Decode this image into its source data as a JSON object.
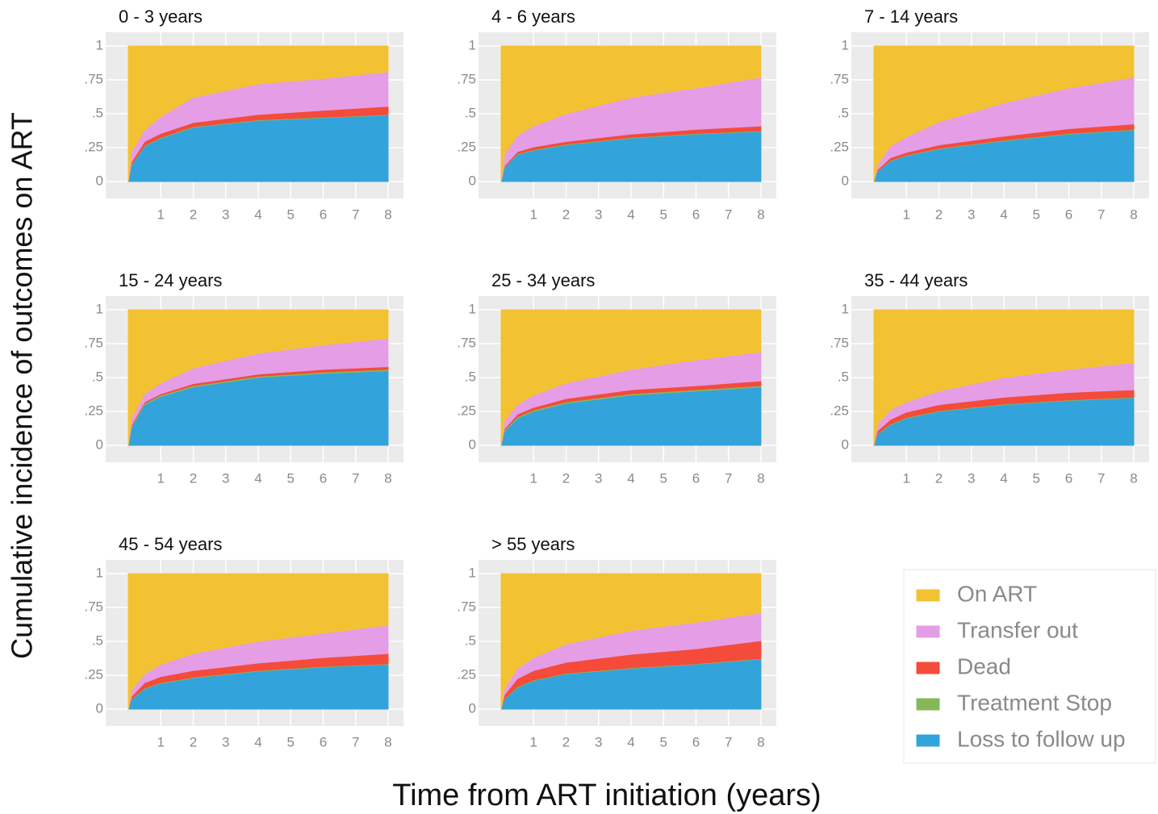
{
  "ylabel": "Cumulative incidence of outcomes on ART",
  "xlabel": "Time from ART initiation (years)",
  "legend": [
    {
      "name": "On ART",
      "color": "#f3c233"
    },
    {
      "name": "Transfer out",
      "color": "#e59de6"
    },
    {
      "name": "Dead",
      "color": "#f44b3b"
    },
    {
      "name": "Treatment Stop",
      "color": "#86b85a"
    },
    {
      "name": "Loss to follow up",
      "color": "#33a3dc"
    }
  ],
  "chart_data": [
    {
      "type": "area",
      "title": "0 - 3 years",
      "x": [
        0,
        0.1,
        0.5,
        1,
        2,
        4,
        6,
        8
      ],
      "xlim": [
        0,
        8
      ],
      "xticks": [
        1,
        2,
        3,
        4,
        5,
        6,
        7,
        8
      ],
      "ylim": [
        0,
        1
      ],
      "yticks": [
        0,
        {
          "value": 0.25,
          "label": ".25"
        },
        {
          "value": 0.5,
          "label": ".5"
        },
        {
          "value": 0.75,
          "label": ".75"
        },
        1
      ],
      "series": [
        {
          "values": [
            1,
            0.78,
            0.62,
            0.52,
            0.38,
            0.28,
            0.24,
            0.19
          ]
        },
        {
          "values": [
            0,
            0.075,
            0.085,
            0.125,
            0.185,
            0.225,
            0.235,
            0.255
          ]
        },
        {
          "values": [
            0,
            0.02,
            0.03,
            0.03,
            0.03,
            0.04,
            0.05,
            0.06
          ]
        },
        {
          "values": [
            0,
            0.005,
            0.005,
            0.005,
            0.005,
            0.005,
            0.005,
            0.005
          ]
        },
        {
          "values": [
            0,
            0.12,
            0.26,
            0.32,
            0.4,
            0.45,
            0.47,
            0.49
          ]
        }
      ]
    },
    {
      "type": "area",
      "title": "4 - 6 years",
      "x": [
        0,
        0.1,
        0.5,
        1,
        2,
        4,
        6,
        8
      ],
      "xlim": [
        0,
        8
      ],
      "xticks": [
        1,
        2,
        3,
        4,
        5,
        6,
        7,
        8
      ],
      "ylim": [
        0,
        1
      ],
      "yticks": [
        0,
        {
          "value": 0.25,
          "label": ".25"
        },
        {
          "value": 0.5,
          "label": ".5"
        },
        {
          "value": 0.75,
          "label": ".75"
        },
        1
      ],
      "series": [
        {
          "values": [
            1,
            0.8,
            0.66,
            0.59,
            0.5,
            0.38,
            0.31,
            0.23
          ]
        },
        {
          "values": [
            0,
            0.085,
            0.12,
            0.155,
            0.205,
            0.27,
            0.305,
            0.36
          ]
        },
        {
          "values": [
            0,
            0.01,
            0.015,
            0.02,
            0.02,
            0.025,
            0.03,
            0.035
          ]
        },
        {
          "values": [
            0,
            0.005,
            0.005,
            0.005,
            0.005,
            0.005,
            0.005,
            0.005
          ]
        },
        {
          "values": [
            0,
            0.1,
            0.2,
            0.23,
            0.27,
            0.32,
            0.35,
            0.37
          ]
        }
      ]
    },
    {
      "type": "area",
      "title": "7 - 14 years",
      "x": [
        0,
        0.1,
        0.5,
        1,
        2,
        4,
        6,
        8
      ],
      "xlim": [
        0,
        8
      ],
      "xticks": [
        1,
        2,
        3,
        4,
        5,
        6,
        7,
        8
      ],
      "ylim": [
        0,
        1
      ],
      "yticks": [
        0,
        {
          "value": 0.25,
          "label": ".25"
        },
        {
          "value": 0.5,
          "label": ".5"
        },
        {
          "value": 0.75,
          "label": ".75"
        },
        1
      ],
      "series": [
        {
          "values": [
            1,
            0.88,
            0.74,
            0.67,
            0.56,
            0.42,
            0.31,
            0.23
          ]
        },
        {
          "values": [
            0,
            0.035,
            0.085,
            0.115,
            0.17,
            0.245,
            0.3,
            0.345
          ]
        },
        {
          "values": [
            0,
            0.01,
            0.02,
            0.02,
            0.025,
            0.03,
            0.035,
            0.04
          ]
        },
        {
          "values": [
            0,
            0.005,
            0.005,
            0.005,
            0.005,
            0.005,
            0.005,
            0.005
          ]
        },
        {
          "values": [
            0,
            0.07,
            0.15,
            0.19,
            0.24,
            0.3,
            0.35,
            0.38
          ]
        }
      ]
    },
    {
      "type": "area",
      "title": "15 - 24 years",
      "x": [
        0,
        0.1,
        0.5,
        1,
        2,
        4,
        6,
        8
      ],
      "xlim": [
        0,
        8
      ],
      "xticks": [
        1,
        2,
        3,
        4,
        5,
        6,
        7,
        8
      ],
      "ylim": [
        0,
        1
      ],
      "yticks": [
        0,
        {
          "value": 0.25,
          "label": ".25"
        },
        {
          "value": 0.5,
          "label": ".5"
        },
        {
          "value": 0.75,
          "label": ".75"
        },
        1
      ],
      "series": [
        {
          "values": [
            1,
            0.8,
            0.62,
            0.54,
            0.43,
            0.32,
            0.26,
            0.21
          ]
        },
        {
          "values": [
            0,
            0.05,
            0.06,
            0.08,
            0.115,
            0.155,
            0.18,
            0.21
          ]
        },
        {
          "values": [
            0,
            0.01,
            0.01,
            0.01,
            0.015,
            0.015,
            0.02,
            0.02
          ]
        },
        {
          "values": [
            0,
            0.01,
            0.01,
            0.01,
            0.01,
            0.01,
            0.01,
            0.01
          ]
        },
        {
          "values": [
            0,
            0.13,
            0.3,
            0.36,
            0.43,
            0.5,
            0.53,
            0.55
          ]
        }
      ]
    },
    {
      "type": "area",
      "title": "25 - 34 years",
      "x": [
        0,
        0.1,
        0.5,
        1,
        2,
        4,
        6,
        8
      ],
      "xlim": [
        0,
        8
      ],
      "xticks": [
        1,
        2,
        3,
        4,
        5,
        6,
        7,
        8
      ],
      "ylim": [
        0,
        1
      ],
      "yticks": [
        0,
        {
          "value": 0.25,
          "label": ".25"
        },
        {
          "value": 0.5,
          "label": ".5"
        },
        {
          "value": 0.75,
          "label": ".75"
        },
        1
      ],
      "series": [
        {
          "values": [
            1,
            0.82,
            0.7,
            0.63,
            0.54,
            0.44,
            0.37,
            0.31
          ]
        },
        {
          "values": [
            0,
            0.06,
            0.07,
            0.09,
            0.115,
            0.15,
            0.19,
            0.215
          ]
        },
        {
          "values": [
            0,
            0.01,
            0.02,
            0.02,
            0.025,
            0.03,
            0.03,
            0.035
          ]
        },
        {
          "values": [
            0,
            0.01,
            0.01,
            0.01,
            0.01,
            0.01,
            0.01,
            0.01
          ]
        },
        {
          "values": [
            0,
            0.1,
            0.2,
            0.25,
            0.31,
            0.37,
            0.4,
            0.43
          ]
        }
      ]
    },
    {
      "type": "area",
      "title": "35 - 44 years",
      "x": [
        0,
        0.1,
        0.5,
        1,
        2,
        4,
        6,
        8
      ],
      "xlim": [
        0,
        8
      ],
      "xticks": [
        1,
        2,
        3,
        4,
        5,
        6,
        7,
        8
      ],
      "ylim": [
        0,
        1
      ],
      "yticks": [
        0,
        {
          "value": 0.25,
          "label": ".25"
        },
        {
          "value": 0.5,
          "label": ".5"
        },
        {
          "value": 0.75,
          "label": ".75"
        },
        1
      ],
      "series": [
        {
          "values": [
            1,
            0.85,
            0.74,
            0.68,
            0.6,
            0.5,
            0.44,
            0.39
          ]
        },
        {
          "values": [
            0,
            0.045,
            0.07,
            0.075,
            0.1,
            0.145,
            0.17,
            0.2
          ]
        },
        {
          "values": [
            0,
            0.02,
            0.035,
            0.04,
            0.045,
            0.05,
            0.055,
            0.055
          ]
        },
        {
          "values": [
            0,
            0.005,
            0.005,
            0.005,
            0.005,
            0.005,
            0.005,
            0.005
          ]
        },
        {
          "values": [
            0,
            0.08,
            0.15,
            0.2,
            0.25,
            0.3,
            0.33,
            0.35
          ]
        }
      ]
    },
    {
      "type": "area",
      "title": "45 - 54 years",
      "x": [
        0,
        0.1,
        0.5,
        1,
        2,
        4,
        6,
        8
      ],
      "xlim": [
        0,
        8
      ],
      "xticks": [
        1,
        2,
        3,
        4,
        5,
        6,
        7,
        8
      ],
      "ylim": [
        0,
        1
      ],
      "yticks": [
        0,
        {
          "value": 0.25,
          "label": ".25"
        },
        {
          "value": 0.5,
          "label": ".5"
        },
        {
          "value": 0.75,
          "label": ".75"
        },
        1
      ],
      "series": [
        {
          "values": [
            1,
            0.86,
            0.74,
            0.67,
            0.59,
            0.5,
            0.44,
            0.38
          ]
        },
        {
          "values": [
            0,
            0.045,
            0.065,
            0.09,
            0.125,
            0.16,
            0.18,
            0.21
          ]
        },
        {
          "values": [
            0,
            0.02,
            0.04,
            0.045,
            0.05,
            0.055,
            0.065,
            0.075
          ]
        },
        {
          "values": [
            0,
            0.005,
            0.005,
            0.005,
            0.005,
            0.005,
            0.005,
            0.005
          ]
        },
        {
          "values": [
            0,
            0.07,
            0.15,
            0.19,
            0.23,
            0.28,
            0.31,
            0.33
          ]
        }
      ]
    },
    {
      "type": "area",
      "title": "> 55 years",
      "x": [
        0,
        0.1,
        0.5,
        1,
        2,
        4,
        6,
        8
      ],
      "xlim": [
        0,
        8
      ],
      "xticks": [
        1,
        2,
        3,
        4,
        5,
        6,
        7,
        8
      ],
      "ylim": [
        0,
        1
      ],
      "yticks": [
        0,
        {
          "value": 0.25,
          "label": ".25"
        },
        {
          "value": 0.5,
          "label": ".5"
        },
        {
          "value": 0.75,
          "label": ".75"
        },
        1
      ],
      "series": [
        {
          "values": [
            1,
            0.85,
            0.7,
            0.62,
            0.52,
            0.42,
            0.36,
            0.29
          ]
        },
        {
          "values": [
            0,
            0.045,
            0.075,
            0.095,
            0.135,
            0.175,
            0.195,
            0.205
          ]
        },
        {
          "values": [
            0,
            0.03,
            0.06,
            0.07,
            0.08,
            0.1,
            0.11,
            0.13
          ]
        },
        {
          "values": [
            0,
            0.005,
            0.005,
            0.005,
            0.005,
            0.005,
            0.005,
            0.005
          ]
        },
        {
          "values": [
            0,
            0.07,
            0.16,
            0.21,
            0.26,
            0.3,
            0.33,
            0.37
          ]
        }
      ]
    }
  ]
}
